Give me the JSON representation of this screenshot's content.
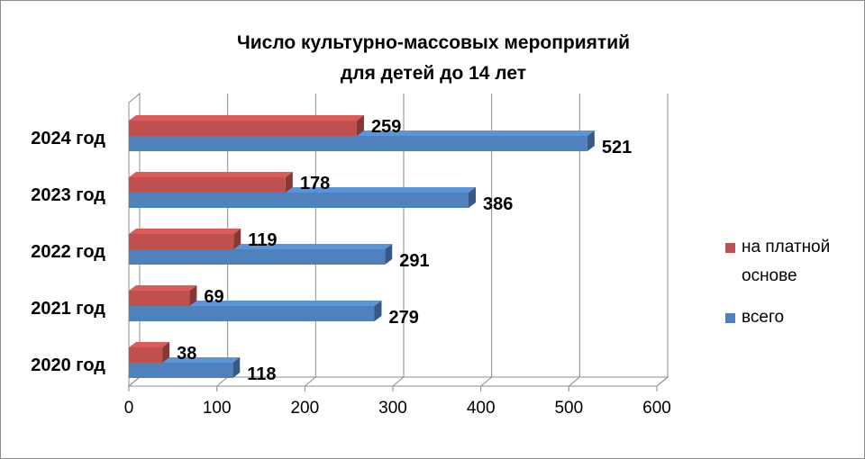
{
  "chart_data": {
    "type": "bar",
    "orientation": "horizontal",
    "title_lines": [
      "Число культурно-массовых мероприятий",
      "для детей до 14 лет"
    ],
    "categories": [
      "2020 год",
      "2021 год",
      "2022 год",
      "2023 год",
      "2024 год"
    ],
    "series": [
      {
        "name": "всего",
        "values": [
          118,
          279,
          291,
          386,
          521
        ],
        "color": "#4f81bd"
      },
      {
        "name": "на платной основе",
        "values": [
          38,
          69,
          119,
          178,
          259
        ],
        "color": "#c0504d"
      }
    ],
    "xlim": [
      0,
      600
    ],
    "xticks": [
      "0",
      "100",
      "200",
      "300",
      "400",
      "500",
      "600"
    ],
    "grid": true,
    "legend": "right"
  }
}
